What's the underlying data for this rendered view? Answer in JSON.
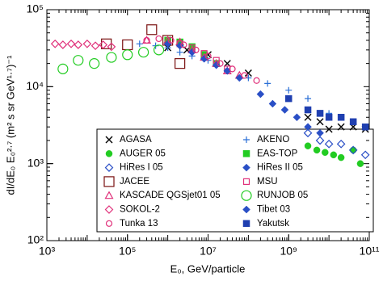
{
  "chart_data": {
    "type": "scatter",
    "x_label": "E₀, GeV/particle",
    "y_label": "dI/dE₀ E₀²·⁷ (m² s sr GeV¹·⁷)⁻¹",
    "xlog": true,
    "ylog": true,
    "xlim": [
      1000,
      100000000000
    ],
    "ylim": [
      100,
      100000
    ],
    "xticks": [
      {
        "value": 1000,
        "label": "10³"
      },
      {
        "value": 100000,
        "label": "10⁵"
      },
      {
        "value": 10000000,
        "label": "10⁷"
      },
      {
        "value": 1000000000,
        "label": "10⁹"
      },
      {
        "value": 100000000000,
        "label": "10¹¹"
      }
    ],
    "yticks": [
      {
        "value": 100,
        "label": "10²"
      },
      {
        "value": 1000,
        "label": "10³"
      },
      {
        "value": 10000,
        "label": "10⁴"
      },
      {
        "value": 100000,
        "label": "10⁵"
      }
    ],
    "legend": "lower right",
    "series": [
      {
        "name": "AGASA",
        "color": "#000000",
        "marker": "x",
        "x": [
          1000000,
          3000000,
          10000000,
          30000000,
          100000000,
          3000000000,
          6000000000,
          10000000000,
          20000000000,
          40000000000,
          80000000000
        ],
        "values": [
          32000,
          30000,
          26000,
          20000,
          15000,
          4000,
          3500,
          2800,
          3000,
          3000,
          2800
        ]
      },
      {
        "name": "AKENO",
        "color": "#2a6fd6",
        "marker": "plus",
        "x": [
          200000,
          500000,
          1000000,
          2000000,
          4000000,
          10000000,
          30000000,
          100000000,
          300000000,
          1000000000,
          3000000000,
          10000000000
        ],
        "values": [
          36000,
          34000,
          32000,
          28000,
          25000,
          22000,
          17000,
          13000,
          11000,
          9000,
          7000,
          4500
        ]
      },
      {
        "name": "AUGER 05",
        "color": "#22cc22",
        "marker": "circle-filled",
        "x": [
          3000000000,
          5000000000,
          8000000000,
          13000000000,
          20000000000,
          40000000000,
          60000000000
        ],
        "values": [
          1700,
          1500,
          1400,
          1300,
          1200,
          1500,
          1000
        ]
      },
      {
        "name": "EAS-TOP",
        "color": "#22cc22",
        "marker": "square-filled",
        "x": [
          1000000,
          2000000,
          4000000,
          8000000,
          16000000
        ],
        "values": [
          40000,
          38000,
          33000,
          26000,
          20000
        ]
      },
      {
        "name": "HiRes I 05",
        "color": "#2a4fc6",
        "marker": "diamond-open",
        "x": [
          3000000000,
          6000000000,
          10000000000,
          20000000000,
          40000000000,
          80000000000
        ],
        "values": [
          2500,
          2000,
          1800,
          1800,
          1500,
          1300
        ]
      },
      {
        "name": "HiRes II 05",
        "color": "#2a4fc6",
        "marker": "diamond-filled",
        "x": [
          200000000,
          400000000,
          800000000,
          1600000000,
          3000000000,
          6000000000
        ],
        "values": [
          8000,
          6000,
          5000,
          4000,
          3000,
          2500
        ]
      },
      {
        "name": "JACEE",
        "color": "#7a1010",
        "marker": "square-open-large",
        "x": [
          30000,
          100000,
          400000,
          1000000,
          2000000
        ],
        "values": [
          36000,
          35000,
          55000,
          40000,
          20000
        ]
      },
      {
        "name": "MSU",
        "color": "#e0307a",
        "marker": "square-open",
        "x": [
          2000000,
          4000000,
          8000000,
          16000000,
          30000000
        ],
        "values": [
          36000,
          32000,
          27000,
          22000,
          17000
        ]
      },
      {
        "name": "KASCADE QGSjet01 05",
        "color": "#e0307a",
        "marker": "triangle-open",
        "x": [
          300000,
          1000000,
          2000000,
          4000000,
          8000000,
          16000000,
          30000000,
          60000000
        ],
        "values": [
          40000,
          40000,
          38000,
          30000,
          24000,
          20000,
          16000,
          14000
        ]
      },
      {
        "name": "RUNJOB 05",
        "color": "#22cc22",
        "marker": "circle-open-large",
        "x": [
          2500,
          6000,
          15000,
          40000,
          100000,
          250000,
          600000
        ],
        "values": [
          17000,
          22000,
          20000,
          24000,
          26000,
          28000,
          30000
        ]
      },
      {
        "name": "SOKOL-2",
        "color": "#e0307a",
        "marker": "diamond-open",
        "x": [
          1600,
          2500,
          4000,
          6000,
          10000,
          16000,
          25000,
          40000
        ],
        "values": [
          36000,
          35000,
          36000,
          35000,
          36000,
          34000,
          35000,
          33000
        ]
      },
      {
        "name": "Tibet 03",
        "color": "#2a4fc6",
        "marker": "diamond-filled",
        "x": [
          1000000,
          2000000,
          4000000,
          8000000,
          16000000,
          30000000,
          60000000
        ],
        "values": [
          36000,
          34000,
          28000,
          23000,
          19000,
          16000,
          13000
        ]
      },
      {
        "name": "Tunka 13",
        "color": "#e0307a",
        "marker": "circle-open",
        "x": [
          300000,
          600000,
          1200000,
          2500000,
          5000000,
          10000000,
          20000000,
          40000000,
          80000000,
          160000000
        ],
        "values": [
          40000,
          42000,
          40000,
          35000,
          30000,
          25000,
          20000,
          17000,
          14000,
          12000
        ]
      },
      {
        "name": "Yakutsk",
        "color": "#1f3fb0",
        "marker": "square-filled",
        "x": [
          1000000000,
          3000000000,
          6000000000,
          10000000000,
          20000000000,
          40000000000,
          80000000000
        ],
        "values": [
          7000,
          5000,
          4500,
          4000,
          4000,
          3500,
          3000
        ]
      }
    ]
  }
}
